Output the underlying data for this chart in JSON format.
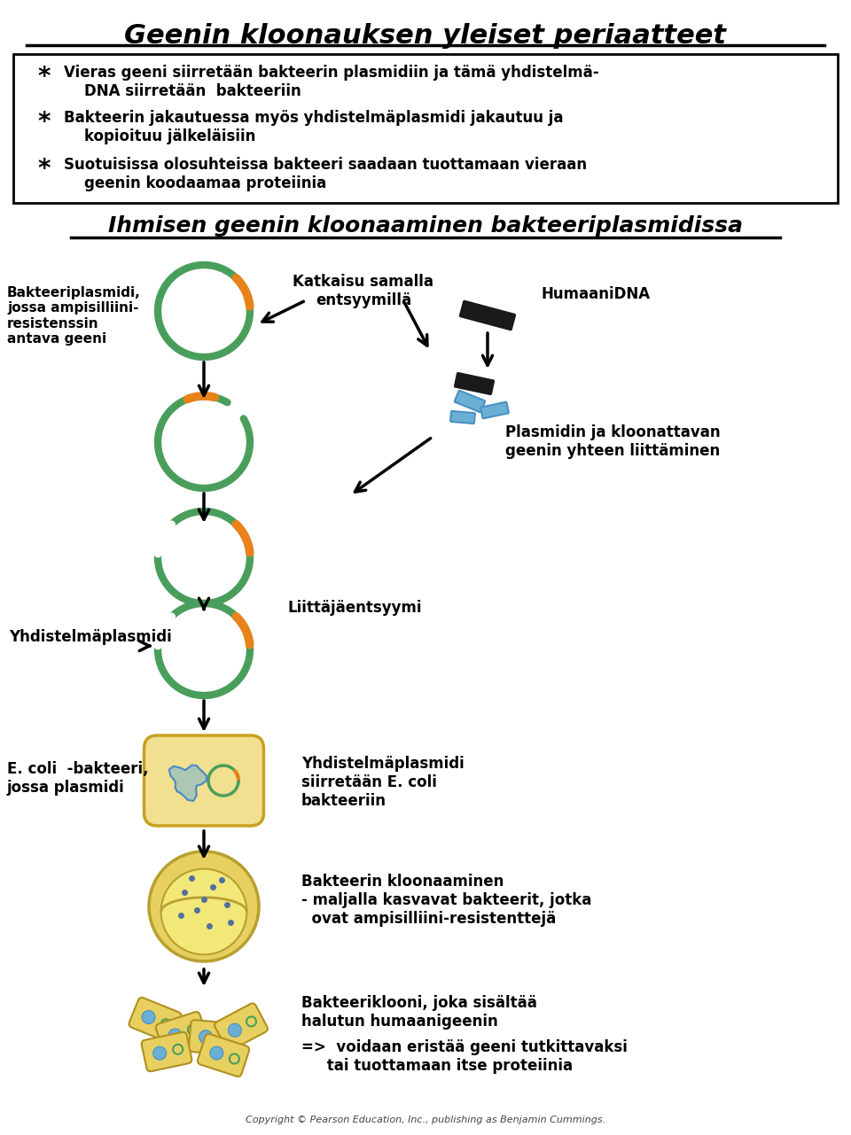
{
  "title": "Geenin kloonauksen yleiset periaatteet",
  "subtitle": "Ihmisen geenin kloonaaminen bakteeriplasmidissa",
  "bullet_text": [
    "Vieras geeni siirretään bakteerin plasmidiin ja tämä yhdistelmä-\n    DNA siirretään  bakteeriin",
    "Bakteerin jakautuessa myös yhdistelmäplasmidi jakautuu ja\n    kopioituu jälkeläisiin",
    "Suotuisissa olosuhteissa bakteeri saadaan tuottamaan vieraan\n    geenin koodaamaa proteiinia"
  ],
  "label_bakteeriplasmidi": "Bakteeriplasmidi,\njossa ampisilliini-\nresistenssin\nantava geeni",
  "label_katkaisu": "Katkaisu samalla\nentsyymillä",
  "label_humaanidna": "HumaaniDNA",
  "label_plasmidin": "Plasmidin ja kloonattavan\ngeenin yhteen liittäminen",
  "label_liittaja": "Liittäjäentsyymi",
  "label_yhdistelma": "Yhdistelmäplasmidi",
  "label_ecoli": "E. coli  -bakteeri,\njossa plasmidi",
  "label_siirretaan": "Yhdistelmäplasmidi\nsiirretään E. coli\nbakteeriin",
  "label_kloonaaminen": "Bakteerin kloonaaminen\n- maljalla kasvavat bakteerit, jotka\n  ovat ampisilliini-resistenttejä",
  "label_klooni": "Bakteeriklooni, joka sisältää\nhalutun humaanigeenin",
  "label_voidaan": "=>  voidaan eristää geeni tutkittavaksi\n     tai tuottamaan itse proteiinia",
  "label_copyright": "Copyright © Pearson Education, Inc., publishing as Benjamin Cummings.",
  "color_green": "#4a9e5c",
  "color_orange": "#e8821a",
  "color_blue_dna": "#6ab0d4",
  "color_yellow_cell": "#f0d060",
  "color_black": "#000000",
  "color_white": "#ffffff",
  "color_gray_cell": "#d4c890",
  "bg_color": "#ffffff"
}
